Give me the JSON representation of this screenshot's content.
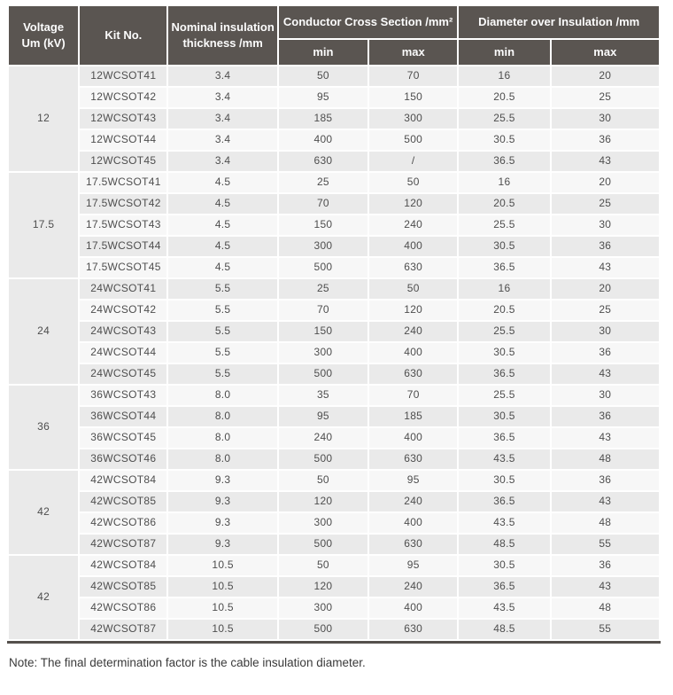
{
  "header": {
    "voltage": "Voltage\nUm (kV)",
    "kit_no": "Kit No.",
    "nominal": "Nominal insulation\nthickness /mm",
    "conductor_group": "Conductor Cross Section /mm²",
    "diameter_group": "Diameter over Insulation /mm",
    "sub": [
      "min",
      "max",
      "min",
      "max"
    ]
  },
  "table": {
    "groups": [
      {
        "voltage": "12",
        "rows": [
          [
            "12WCSOT41",
            "3.4",
            "50",
            "70",
            "16",
            "20"
          ],
          [
            "12WCSOT42",
            "3.4",
            "95",
            "150",
            "20.5",
            "25"
          ],
          [
            "12WCSOT43",
            "3.4",
            "185",
            "300",
            "25.5",
            "30"
          ],
          [
            "12WCSOT44",
            "3.4",
            "400",
            "500",
            "30.5",
            "36"
          ],
          [
            "12WCSOT45",
            "3.4",
            "630",
            "/",
            "36.5",
            "43"
          ]
        ]
      },
      {
        "voltage": "17.5",
        "rows": [
          [
            "17.5WCSOT41",
            "4.5",
            "25",
            "50",
            "16",
            "20"
          ],
          [
            "17.5WCSOT42",
            "4.5",
            "70",
            "120",
            "20.5",
            "25"
          ],
          [
            "17.5WCSOT43",
            "4.5",
            "150",
            "240",
            "25.5",
            "30"
          ],
          [
            "17.5WCSOT44",
            "4.5",
            "300",
            "400",
            "30.5",
            "36"
          ],
          [
            "17.5WCSOT45",
            "4.5",
            "500",
            "630",
            "36.5",
            "43"
          ]
        ]
      },
      {
        "voltage": "24",
        "rows": [
          [
            "24WCSOT41",
            "5.5",
            "25",
            "50",
            "16",
            "20"
          ],
          [
            "24WCSOT42",
            "5.5",
            "70",
            "120",
            "20.5",
            "25"
          ],
          [
            "24WCSOT43",
            "5.5",
            "150",
            "240",
            "25.5",
            "30"
          ],
          [
            "24WCSOT44",
            "5.5",
            "300",
            "400",
            "30.5",
            "36"
          ],
          [
            "24WCSOT45",
            "5.5",
            "500",
            "630",
            "36.5",
            "43"
          ]
        ]
      },
      {
        "voltage": "36",
        "rows": [
          [
            "36WCSOT43",
            "8.0",
            "35",
            "70",
            "25.5",
            "30"
          ],
          [
            "36WCSOT44",
            "8.0",
            "95",
            "185",
            "30.5",
            "36"
          ],
          [
            "36WCSOT45",
            "8.0",
            "240",
            "400",
            "36.5",
            "43"
          ],
          [
            "36WCSOT46",
            "8.0",
            "500",
            "630",
            "43.5",
            "48"
          ]
        ]
      },
      {
        "voltage": "42",
        "rows": [
          [
            "42WCSOT84",
            "9.3",
            "50",
            "95",
            "30.5",
            "36"
          ],
          [
            "42WCSOT85",
            "9.3",
            "120",
            "240",
            "36.5",
            "43"
          ],
          [
            "42WCSOT86",
            "9.3",
            "300",
            "400",
            "43.5",
            "48"
          ],
          [
            "42WCSOT87",
            "9.3",
            "500",
            "630",
            "48.5",
            "55"
          ]
        ]
      },
      {
        "voltage": "42",
        "rows": [
          [
            "42WCSOT84",
            "10.5",
            "50",
            "95",
            "30.5",
            "36"
          ],
          [
            "42WCSOT85",
            "10.5",
            "120",
            "240",
            "36.5",
            "43"
          ],
          [
            "42WCSOT86",
            "10.5",
            "300",
            "400",
            "43.5",
            "48"
          ],
          [
            "42WCSOT87",
            "10.5",
            "500",
            "630",
            "48.5",
            "55"
          ]
        ]
      }
    ]
  },
  "note": "Note: The final determination factor is the cable insulation diameter.",
  "colors": {
    "header_bg": "#5a5551",
    "header_text": "#fcfcfc",
    "row_dark": "#eaeaea",
    "row_light": "#f7f7f7",
    "cell_text": "#4e4e4e",
    "bottom_rule": "#55504c",
    "note_text": "#3a3a3a"
  }
}
